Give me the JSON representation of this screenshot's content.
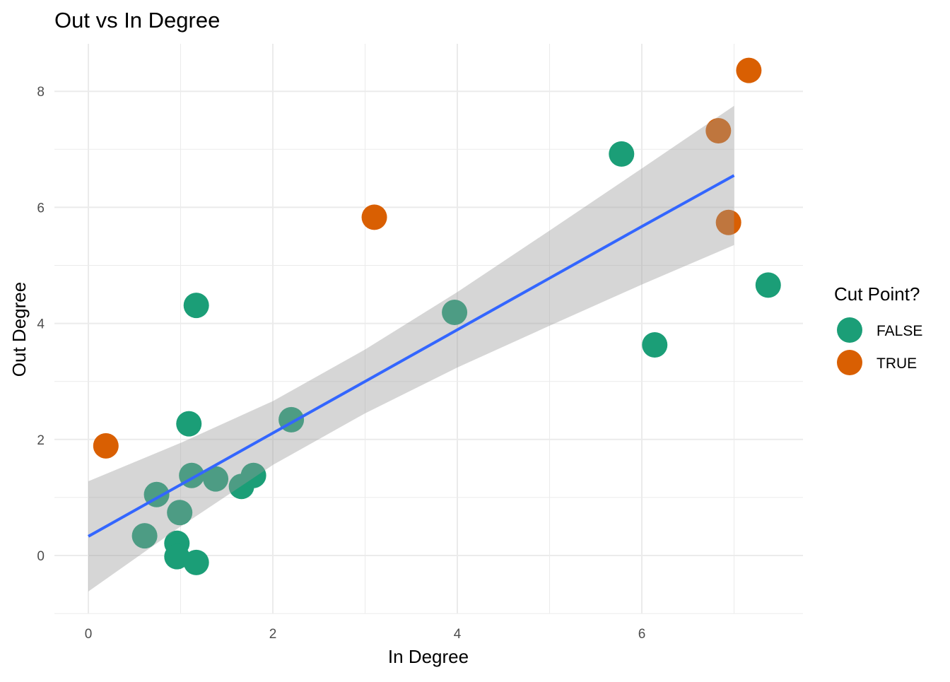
{
  "chart_data": {
    "type": "scatter",
    "title": "Out vs In Degree",
    "xlabel": "In Degree",
    "ylabel": "Out Degree",
    "xlim": [
      -0.37,
      7.75
    ],
    "ylim": [
      -1.0,
      8.8
    ],
    "x_ticks": [
      0,
      2,
      4,
      6
    ],
    "y_ticks": [
      0,
      2,
      4,
      6,
      8
    ],
    "grid": true,
    "legend": {
      "title": "Cut Point?",
      "placement": "right",
      "entries": [
        {
          "label": "FALSE",
          "color": "#1B9E77"
        },
        {
          "label": "TRUE",
          "color": "#D95F02"
        }
      ]
    },
    "series": [
      {
        "name": "FALSE",
        "color": "#1B9E77",
        "points": [
          [
            5.78,
            6.92
          ],
          [
            7.37,
            4.66
          ],
          [
            6.14,
            3.63
          ],
          [
            3.97,
            4.19
          ],
          [
            1.17,
            4.31
          ],
          [
            1.09,
            2.27
          ],
          [
            2.2,
            2.34
          ],
          [
            1.12,
            1.38
          ],
          [
            1.38,
            1.32
          ],
          [
            1.66,
            1.19
          ],
          [
            1.79,
            1.38
          ],
          [
            0.74,
            1.05
          ],
          [
            0.99,
            0.74
          ],
          [
            0.61,
            0.34
          ],
          [
            0.96,
            0.21
          ],
          [
            0.96,
            -0.02
          ],
          [
            1.17,
            -0.12
          ]
        ]
      },
      {
        "name": "TRUE",
        "color": "#D95F02",
        "points": [
          [
            0.19,
            1.89
          ],
          [
            3.1,
            5.83
          ],
          [
            7.16,
            8.36
          ],
          [
            6.83,
            7.32
          ],
          [
            6.94,
            5.74
          ]
        ]
      }
    ],
    "fit": {
      "type": "linear",
      "color": "#3366FF",
      "x": [
        0,
        1,
        2,
        3,
        4,
        5,
        6,
        7
      ],
      "y": [
        0.33,
        1.22,
        2.11,
        3.0,
        3.89,
        4.78,
        5.67,
        6.55
      ],
      "ci_lower": [
        -0.62,
        0.5,
        1.56,
        2.45,
        3.24,
        3.96,
        4.67,
        5.35
      ],
      "ci_upper": [
        1.28,
        1.94,
        2.66,
        3.55,
        4.54,
        5.6,
        6.67,
        7.75
      ]
    }
  }
}
